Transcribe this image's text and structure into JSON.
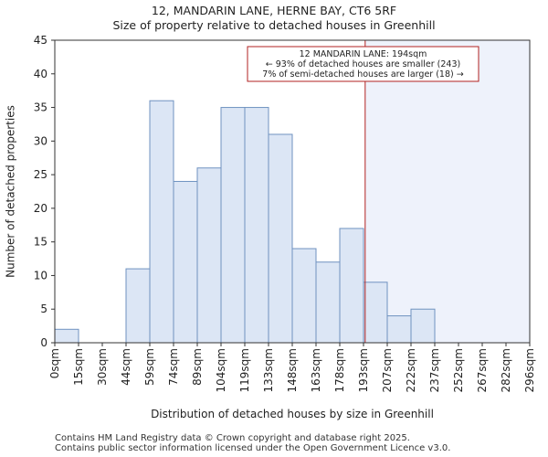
{
  "chart_data": {
    "type": "bar",
    "title": "12, MANDARIN LANE, HERNE BAY, CT6 5RF",
    "subtitle": "Size of property relative to detached houses in Greenhill",
    "xlabel": "Distribution of detached houses by size in Greenhill",
    "ylabel": "Number of detached properties",
    "ylim": [
      0,
      45
    ],
    "yticks": [
      0,
      5,
      10,
      15,
      20,
      25,
      30,
      35,
      40,
      45
    ],
    "bin_edges": [
      "0sqm",
      "15sqm",
      "30sqm",
      "44sqm",
      "59sqm",
      "74sqm",
      "89sqm",
      "104sqm",
      "119sqm",
      "133sqm",
      "148sqm",
      "163sqm",
      "178sqm",
      "193sqm",
      "207sqm",
      "222sqm",
      "237sqm",
      "252sqm",
      "267sqm",
      "282sqm",
      "296sqm"
    ],
    "values": [
      2,
      0,
      0,
      11,
      36,
      24,
      26,
      35,
      35,
      31,
      14,
      12,
      17,
      9,
      4,
      5,
      0,
      0,
      0,
      0
    ],
    "marker": {
      "position_bin": 13.07,
      "label_lines": [
        "12 MANDARIN LANE: 194sqm",
        "← 93% of detached houses are smaller (243)",
        "7% of semi-detached houses are larger (18) →"
      ]
    },
    "colors": {
      "bar_fill": "#dce6f5",
      "bar_stroke": "#6f92c0",
      "marker_line": "#b22222",
      "shade": "#eef2fb"
    },
    "grid": false,
    "legend": "none"
  },
  "footer": {
    "line1": "Contains HM Land Registry data © Crown copyright and database right 2025.",
    "line2": "Contains public sector information licensed under the Open Government Licence v3.0."
  }
}
